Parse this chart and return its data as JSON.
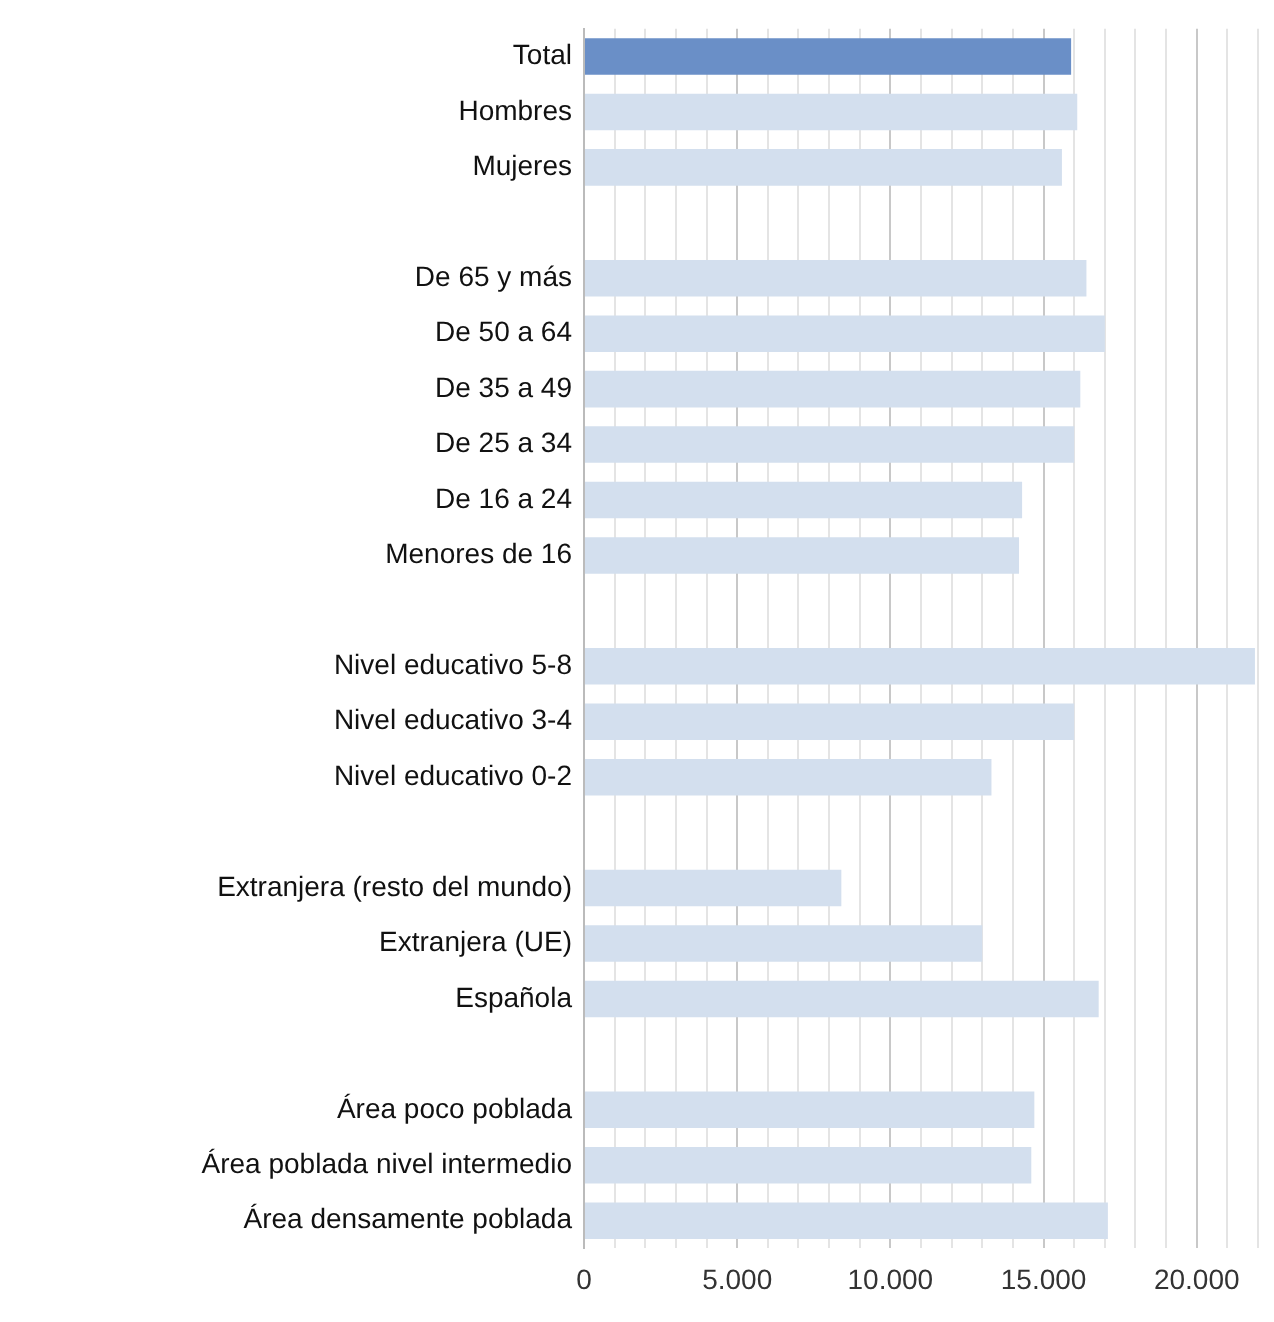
{
  "chart_data": {
    "type": "bar",
    "orientation": "horizontal",
    "categories": [
      "Total",
      "Hombres",
      "Mujeres",
      null,
      "De 65 y más",
      "De 50 a 64",
      "De 35 a 49",
      "De 25 a 34",
      "De 16 a 24",
      "Menores de 16",
      null,
      "Nivel educativo 5-8",
      "Nivel educativo 3-4",
      "Nivel educativo 0-2",
      null,
      "Extranjera (resto del mundo)",
      "Extranjera (UE)",
      "Española",
      null,
      "Área poco poblada",
      "Área poblada nivel intermedio",
      "Área densamente poblada"
    ],
    "values": [
      15900,
      16100,
      15600,
      null,
      16400,
      17000,
      16200,
      16000,
      14300,
      14200,
      null,
      21900,
      16000,
      13300,
      null,
      8400,
      13000,
      16800,
      null,
      14700,
      14600,
      17100
    ],
    "colors": [
      "#6a8fc7",
      "#d3dfee",
      "#d3dfee",
      null,
      "#d3dfee",
      "#d3dfee",
      "#d3dfee",
      "#d3dfee",
      "#d3dfee",
      "#d3dfee",
      null,
      "#d3dfee",
      "#d3dfee",
      "#d3dfee",
      null,
      "#d3dfee",
      "#d3dfee",
      "#d3dfee",
      null,
      "#d3dfee",
      "#d3dfee",
      "#d3dfee"
    ],
    "xlim": [
      0,
      22000
    ],
    "xticks": [
      0,
      {
        "value": 1000,
        "label": null
      },
      {
        "value": 2000,
        "label": null
      },
      {
        "value": 3000,
        "label": null
      },
      {
        "value": 4000,
        "label": null
      },
      {
        "value": 5000,
        "label": "5.000"
      },
      {
        "value": 6000,
        "label": null
      },
      {
        "value": 7000,
        "label": null
      },
      {
        "value": 8000,
        "label": null
      },
      {
        "value": 9000,
        "label": null
      },
      {
        "value": 10000,
        "label": "10.000"
      },
      {
        "value": 11000,
        "label": null
      },
      {
        "value": 12000,
        "label": null
      },
      {
        "value": 13000,
        "label": null
      },
      {
        "value": 14000,
        "label": null
      },
      {
        "value": 15000,
        "label": "15.000"
      },
      {
        "value": 16000,
        "label": null
      },
      {
        "value": 17000,
        "label": null
      },
      {
        "value": 18000,
        "label": null
      },
      {
        "value": 19000,
        "label": null
      },
      {
        "value": 20000,
        "label": "20.000"
      },
      {
        "value": 21000,
        "label": null
      },
      {
        "value": 22000,
        "label": null
      }
    ],
    "grid": "x",
    "legend": false
  }
}
